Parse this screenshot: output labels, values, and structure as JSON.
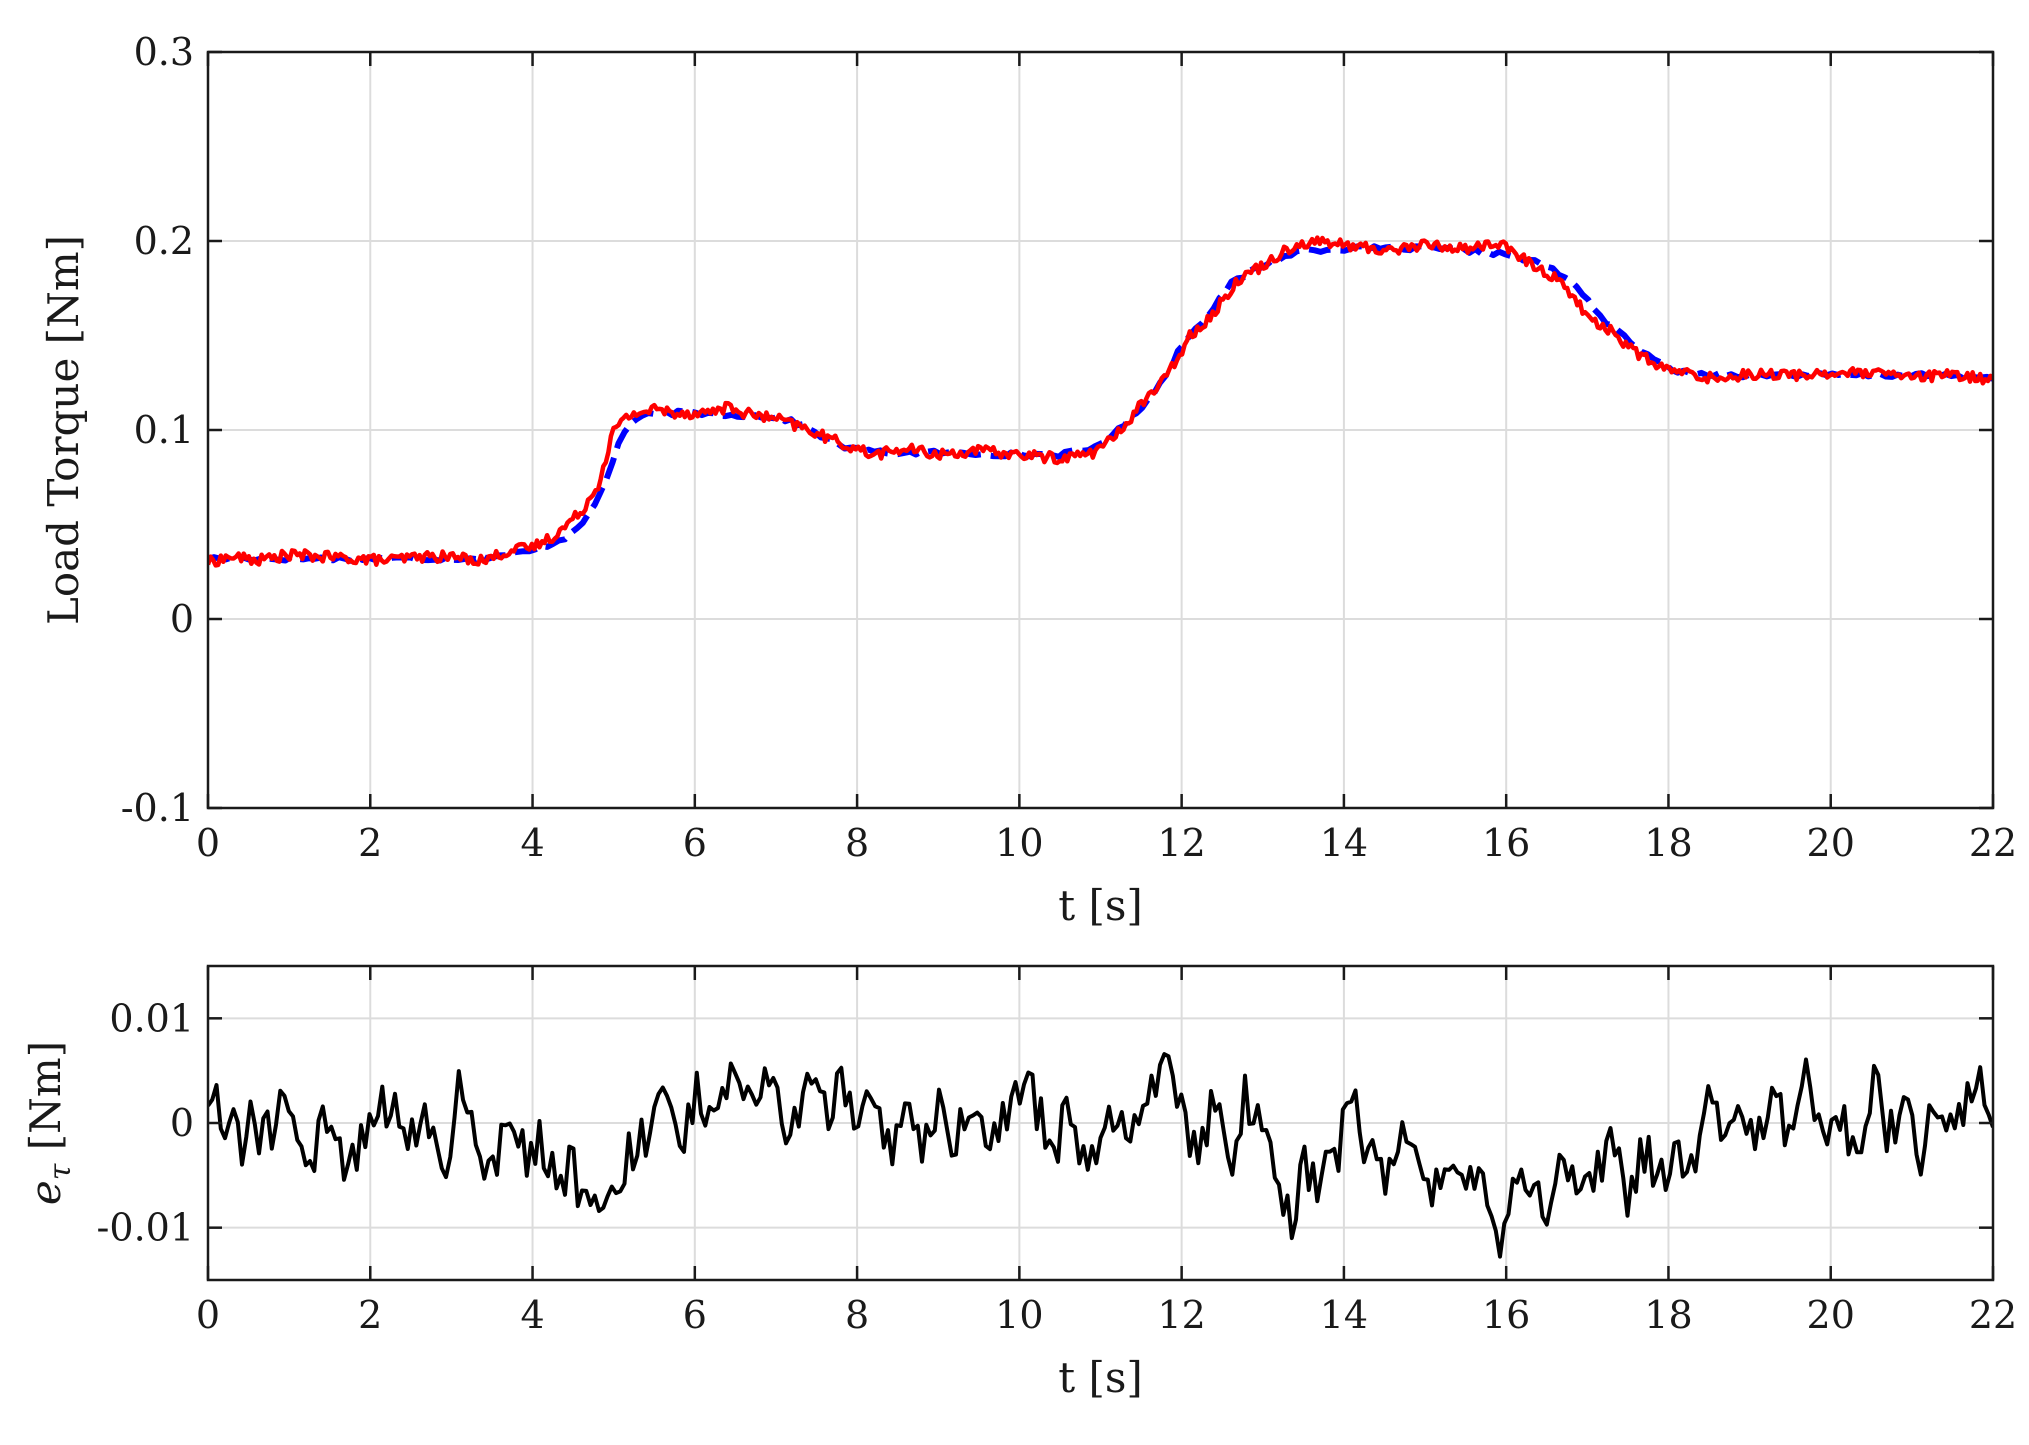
{
  "chart_data": [
    {
      "type": "line",
      "title": "",
      "xlabel": "t [s]",
      "ylabel": "Load Torque [Nm]",
      "xlim": [
        0,
        22
      ],
      "ylim": [
        -0.1,
        0.3
      ],
      "xticks": [
        0,
        2,
        4,
        6,
        8,
        10,
        12,
        14,
        16,
        18,
        20,
        22
      ],
      "xtick_labels": [
        "0",
        "2",
        "4",
        "6",
        "8",
        "10",
        "12",
        "14",
        "16",
        "18",
        "20",
        "22"
      ],
      "yticks": [
        -0.1,
        0,
        0.1,
        0.2,
        0.3
      ],
      "ytick_labels": [
        "-0.1",
        "0",
        "0.1",
        "0.2",
        "0.3"
      ],
      "grid": true,
      "legend": "none",
      "series": [
        {
          "color": "#0000ff",
          "style": "dashed",
          "x": [
            0,
            1,
            2,
            3,
            3.5,
            4,
            4.4,
            4.7,
            4.9,
            5.1,
            5.3,
            5.6,
            6,
            6.5,
            7,
            7.3,
            7.6,
            7.9,
            8.3,
            9,
            10,
            10.5,
            10.9,
            11.2,
            11.5,
            11.8,
            12,
            12.3,
            12.6,
            12.9,
            13.2,
            13.5,
            14,
            15,
            15.5,
            16,
            16.5,
            16.9,
            17.2,
            17.5,
            17.8,
            18.2,
            19,
            20,
            21,
            22
          ],
          "y": [
            0.032,
            0.032,
            0.032,
            0.032,
            0.033,
            0.036,
            0.043,
            0.055,
            0.072,
            0.098,
            0.107,
            0.109,
            0.109,
            0.108,
            0.107,
            0.103,
            0.096,
            0.09,
            0.088,
            0.088,
            0.087,
            0.087,
            0.09,
            0.099,
            0.112,
            0.128,
            0.145,
            0.16,
            0.177,
            0.185,
            0.191,
            0.195,
            0.196,
            0.196,
            0.195,
            0.193,
            0.187,
            0.175,
            0.158,
            0.148,
            0.137,
            0.13,
            0.129,
            0.129,
            0.129,
            0.128
          ]
        },
        {
          "color": "#ff0000",
          "style": "solid",
          "x": [
            0,
            0.3,
            0.6,
            1,
            1.4,
            1.8,
            2.2,
            2.6,
            3,
            3.4,
            3.7,
            4,
            4.3,
            4.6,
            4.8,
            5,
            5.2,
            5.5,
            5.8,
            6.1,
            6.4,
            6.7,
            7,
            7.4,
            7.8,
            8.2,
            8.6,
            9,
            9.5,
            10,
            10.5,
            10.9,
            11.2,
            11.5,
            11.8,
            12.1,
            12.4,
            12.7,
            13,
            13.3,
            13.6,
            14,
            14.5,
            15,
            15.5,
            15.9,
            16.3,
            16.7,
            17,
            17.3,
            17.6,
            17.9,
            18.2,
            18.6,
            19,
            19.5,
            20,
            20.5,
            21,
            21.5,
            22
          ],
          "y": [
            0.03,
            0.033,
            0.031,
            0.034,
            0.033,
            0.032,
            0.031,
            0.033,
            0.033,
            0.031,
            0.036,
            0.038,
            0.045,
            0.057,
            0.07,
            0.1,
            0.108,
            0.111,
            0.109,
            0.109,
            0.112,
            0.108,
            0.106,
            0.1,
            0.093,
            0.087,
            0.09,
            0.087,
            0.089,
            0.087,
            0.085,
            0.088,
            0.097,
            0.114,
            0.127,
            0.15,
            0.162,
            0.18,
            0.187,
            0.196,
            0.2,
            0.198,
            0.195,
            0.198,
            0.196,
            0.199,
            0.188,
            0.178,
            0.16,
            0.152,
            0.141,
            0.133,
            0.13,
            0.127,
            0.13,
            0.129,
            0.13,
            0.13,
            0.128,
            0.129,
            0.127
          ]
        }
      ]
    },
    {
      "type": "line",
      "title": "",
      "xlabel": "t [s]",
      "ylabel": "e_τ [Nm]",
      "ylabel_main": "e",
      "ylabel_sub": "τ",
      "ylabel_rest": " [Nm]",
      "xlim": [
        0,
        22
      ],
      "ylim": [
        -0.015,
        0.015
      ],
      "xticks": [
        0,
        2,
        4,
        6,
        8,
        10,
        12,
        14,
        16,
        18,
        20,
        22
      ],
      "xtick_labels": [
        "0",
        "2",
        "4",
        "6",
        "8",
        "10",
        "12",
        "14",
        "16",
        "18",
        "20",
        "22"
      ],
      "yticks": [
        -0.01,
        0,
        0.01
      ],
      "ytick_labels": [
        "-0.01",
        "0",
        "0.01"
      ],
      "grid": true,
      "legend": "none",
      "series": [
        {
          "color": "#000000",
          "style": "solid",
          "x": [
            0,
            0.1,
            0.2,
            0.3,
            0.4,
            0.45,
            0.5,
            0.7,
            0.9,
            1.1,
            1.3,
            1.5,
            1.7,
            1.9,
            2.1,
            2.3,
            2.5,
            2.7,
            2.9,
            3.1,
            3.3,
            3.5,
            3.7,
            3.9,
            4.1,
            4.3,
            4.5,
            4.6,
            4.7,
            4.8,
            4.9,
            5,
            5.2,
            5.4,
            5.6,
            5.8,
            6,
            6.2,
            6.4,
            6.6,
            6.8,
            7,
            7.2,
            7.4,
            7.6,
            7.8,
            8,
            8.2,
            8.4,
            8.6,
            8.8,
            9,
            9.2,
            9.4,
            9.6,
            9.8,
            10,
            10.2,
            10.4,
            10.6,
            10.8,
            11,
            11.2,
            11.4,
            11.6,
            11.8,
            12,
            12.2,
            12.4,
            12.6,
            12.8,
            13,
            13.2,
            13.35,
            13.5,
            13.7,
            13.9,
            14.1,
            14.3,
            14.5,
            14.7,
            14.9,
            15.1,
            15.3,
            15.5,
            15.7,
            15.9,
            15.95,
            16.1,
            16.3,
            16.5,
            16.7,
            16.9,
            17.1,
            17.3,
            17.5,
            17.7,
            17.9,
            18.1,
            18.3,
            18.5,
            18.7,
            18.9,
            19.1,
            19.3,
            19.5,
            19.7,
            19.9,
            20.1,
            20.3,
            20.5,
            20.6,
            20.7,
            20.9,
            21.1,
            21.3,
            21.5,
            21.7,
            21.9,
            22
          ],
          "y": [
            0.001,
            0.004,
            -0.002,
            0.003,
            -0.001,
            -0.007,
            0.001,
            -0.002,
            0.002,
            -0.001,
            -0.003,
            0.001,
            -0.004,
            -0.002,
            0.001,
            0.002,
            -0.002,
            0.001,
            -0.004,
            0.003,
            -0.001,
            -0.005,
            0.002,
            -0.003,
            -0.002,
            -0.005,
            -0.004,
            -0.007,
            -0.005,
            -0.009,
            -0.01,
            -0.006,
            -0.003,
            -0.001,
            0.001,
            -0.002,
            0.003,
            -0.001,
            0.004,
            0.001,
            0.004,
            0.002,
            -0.001,
            0.003,
            0.001,
            0.004,
            -0.001,
            0.002,
            -0.002,
            0.001,
            -0.003,
            0.001,
            -0.001,
            0.002,
            -0.002,
            0.001,
            0.003,
            0.002,
            -0.003,
            0.001,
            -0.004,
            -0.001,
            0.002,
            -0.001,
            0.003,
            0.005,
            0.001,
            -0.003,
            0.002,
            -0.004,
            0.003,
            -0.002,
            -0.005,
            -0.011,
            -0.004,
            -0.006,
            -0.003,
            0.002,
            -0.003,
            -0.005,
            -0.002,
            -0.004,
            -0.006,
            -0.003,
            -0.005,
            -0.004,
            -0.009,
            -0.012,
            -0.004,
            -0.006,
            -0.008,
            -0.003,
            -0.005,
            -0.004,
            -0.002,
            -0.007,
            -0.003,
            -0.005,
            -0.002,
            -0.004,
            0.002,
            -0.003,
            0.001,
            -0.002,
            0.003,
            -0.001,
            0.004,
            -0.003,
            0.001,
            -0.002,
            0.002,
            0.006,
            -0.001,
            0.001,
            -0.003,
            0.002,
            -0.001,
            0.002,
            0.004,
            -0.002
          ],
          "noise_amp": 0.0025,
          "noise_samples": 420
        }
      ]
    }
  ]
}
